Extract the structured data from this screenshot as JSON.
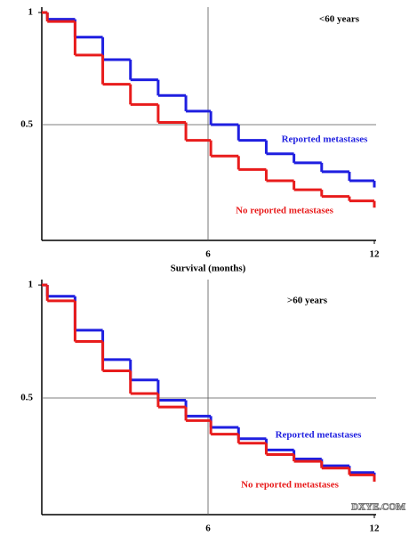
{
  "chart_data": [
    {
      "type": "step",
      "annotation": "<60 years",
      "xlabel": "Survival (months)",
      "x": [
        0,
        0.2,
        1.2,
        2.2,
        3.2,
        4.2,
        5.2,
        6.1,
        7.1,
        8.1,
        9.1,
        10.1,
        11.1,
        12
      ],
      "series": [
        {
          "name": "Reported metastases",
          "color": "#1f1fe0",
          "values": [
            1,
            0.97,
            0.89,
            0.79,
            0.7,
            0.63,
            0.56,
            0.5,
            0.43,
            0.37,
            0.33,
            0.29,
            0.25,
            0.22
          ]
        },
        {
          "name": "No reported metastases",
          "color": "#e81c1c",
          "values": [
            1,
            0.96,
            0.81,
            0.68,
            0.59,
            0.51,
            0.43,
            0.36,
            0.3,
            0.25,
            0.21,
            0.18,
            0.16,
            0.13
          ]
        }
      ],
      "xlim": [
        0,
        12
      ],
      "ylim": [
        -0.016,
        1.024
      ],
      "xticks": [
        6,
        12
      ],
      "yticks": [
        0.5,
        1
      ],
      "grid": true
    },
    {
      "type": "step",
      "annotation": ">60 years",
      "watermark": "DXYE.COM",
      "x": [
        0,
        0.2,
        1.2,
        2.2,
        3.2,
        4.2,
        5.2,
        6.1,
        7.1,
        8.1,
        9.1,
        10.1,
        11.1,
        12
      ],
      "series": [
        {
          "name": "Reported metastases",
          "color": "#1f1fe0",
          "values": [
            1,
            0.95,
            0.8,
            0.67,
            0.58,
            0.49,
            0.42,
            0.37,
            0.32,
            0.27,
            0.23,
            0.2,
            0.17,
            0.15
          ]
        },
        {
          "name": "No reported metastases",
          "color": "#e81c1c",
          "values": [
            1,
            0.93,
            0.75,
            0.62,
            0.52,
            0.46,
            0.4,
            0.34,
            0.3,
            0.25,
            0.22,
            0.19,
            0.16,
            0.13
          ]
        }
      ],
      "xlim": [
        0,
        12
      ],
      "ylim": [
        -0.016,
        1.024
      ],
      "xticks": [
        6,
        12
      ],
      "yticks": [
        0.5,
        1
      ],
      "grid": true
    }
  ]
}
